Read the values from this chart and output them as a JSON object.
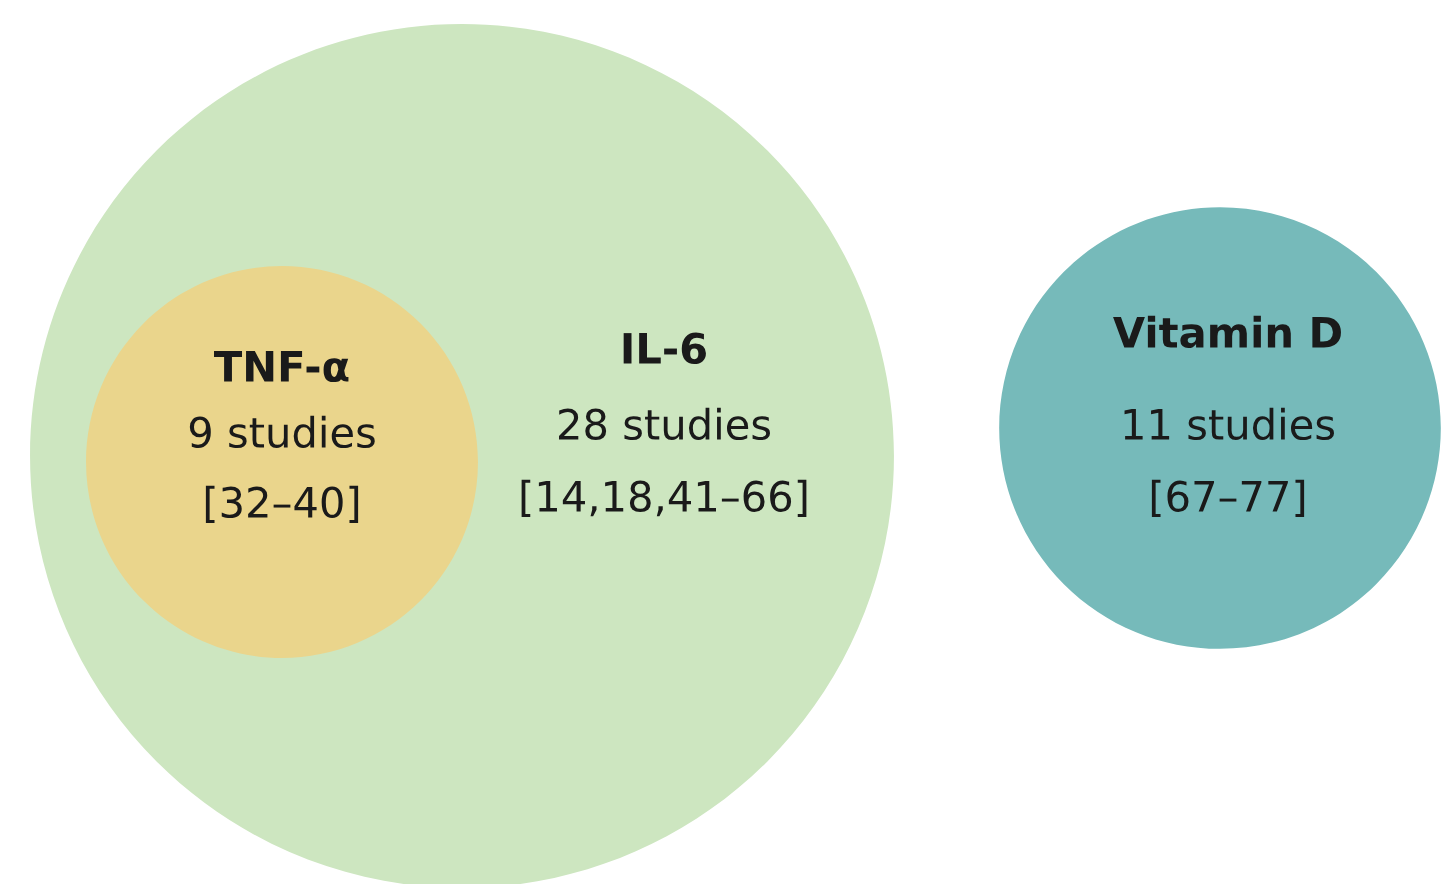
{
  "chart_data": {
    "type": "other",
    "categories": [
      "TNF-α",
      "IL-6",
      "Vitamin D"
    ],
    "values": [
      9,
      28,
      11
    ],
    "value_labels": [
      "9 studies",
      "28 studies",
      "11 studies"
    ],
    "annotations": [
      "[32–40]",
      "[14,18,41–66]",
      "[67–77]"
    ],
    "colors": [
      "#ead58c",
      "#cde6c0",
      "#76baba"
    ]
  }
}
